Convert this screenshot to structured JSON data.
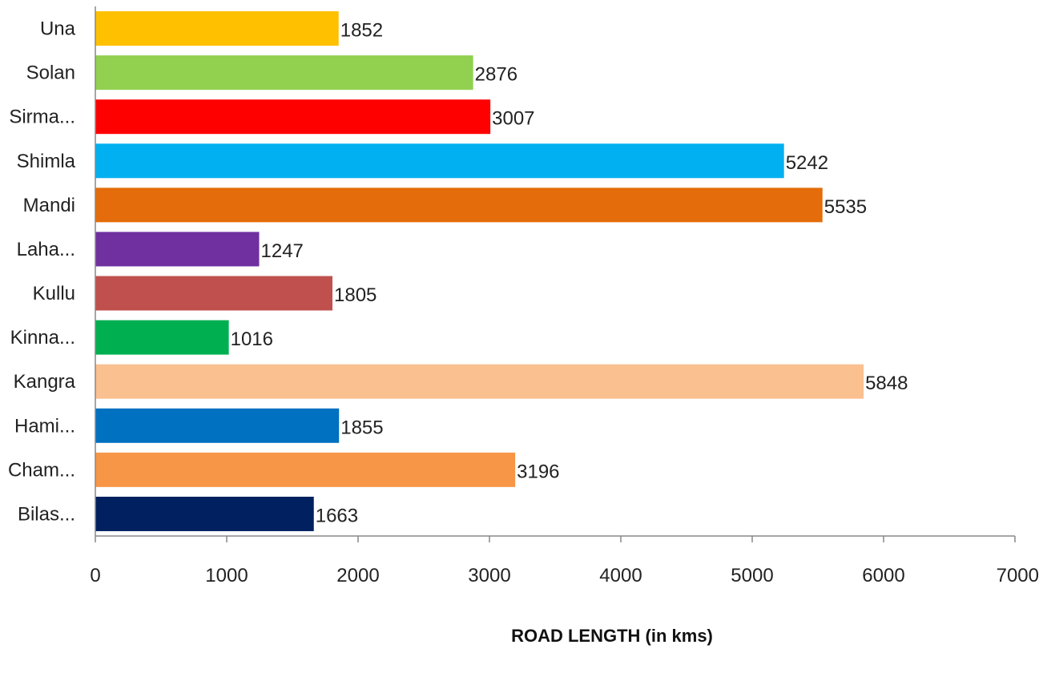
{
  "chart_data": {
    "type": "bar",
    "orientation": "horizontal",
    "title": "",
    "xlabel": "ROAD LENGTH (in kms)",
    "ylabel": "",
    "xlim": [
      0,
      7000
    ],
    "xticks": [
      0,
      1000,
      2000,
      3000,
      4000,
      5000,
      6000,
      7000
    ],
    "grid": false,
    "legend": "none",
    "categories": [
      "Una",
      "Solan",
      "Sirma...",
      "Shimla",
      "Mandi",
      "Laha...",
      "Kullu",
      "Kinna...",
      "Kangra",
      "Hami...",
      "Cham...",
      "Bilas..."
    ],
    "values": [
      1852,
      2876,
      3007,
      5242,
      5535,
      1247,
      1805,
      1016,
      5848,
      1855,
      3196,
      1663
    ],
    "colors": [
      "#FFC000",
      "#92D050",
      "#FF0000",
      "#00B0F0",
      "#E46C0A",
      "#7030A0",
      "#C0504D",
      "#00B050",
      "#FAC090",
      "#0070C0",
      "#F79646",
      "#002060"
    ]
  }
}
